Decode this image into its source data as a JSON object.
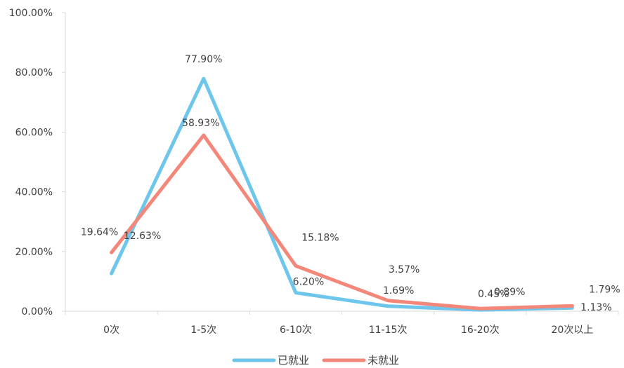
{
  "chart_data": {
    "type": "line",
    "categories": [
      "0次",
      "1-5次",
      "6-10次",
      "11-15次",
      "16-20次",
      "20次以上"
    ],
    "y_ticks": [
      "0.00%",
      "20.00%",
      "40.00%",
      "60.00%",
      "80.00%",
      "100.00%"
    ],
    "ylim": [
      0,
      100
    ],
    "grid": false,
    "legend_position": "bottom",
    "series": [
      {
        "name": "已就业",
        "color": "#6EC6EC",
        "values": [
          12.63,
          77.9,
          6.2,
          1.69,
          0.45,
          1.13
        ],
        "labels": [
          "12.63%",
          "77.90%",
          "6.20%",
          "1.69%",
          "0.45%",
          "1.13%"
        ]
      },
      {
        "name": "未就业",
        "color": "#F3877A",
        "values": [
          19.64,
          58.93,
          15.18,
          3.57,
          0.89,
          1.79
        ],
        "labels": [
          "19.64%",
          "58.93%",
          "15.18%",
          "3.57%",
          "0.89%",
          "1.79%"
        ]
      }
    ]
  }
}
